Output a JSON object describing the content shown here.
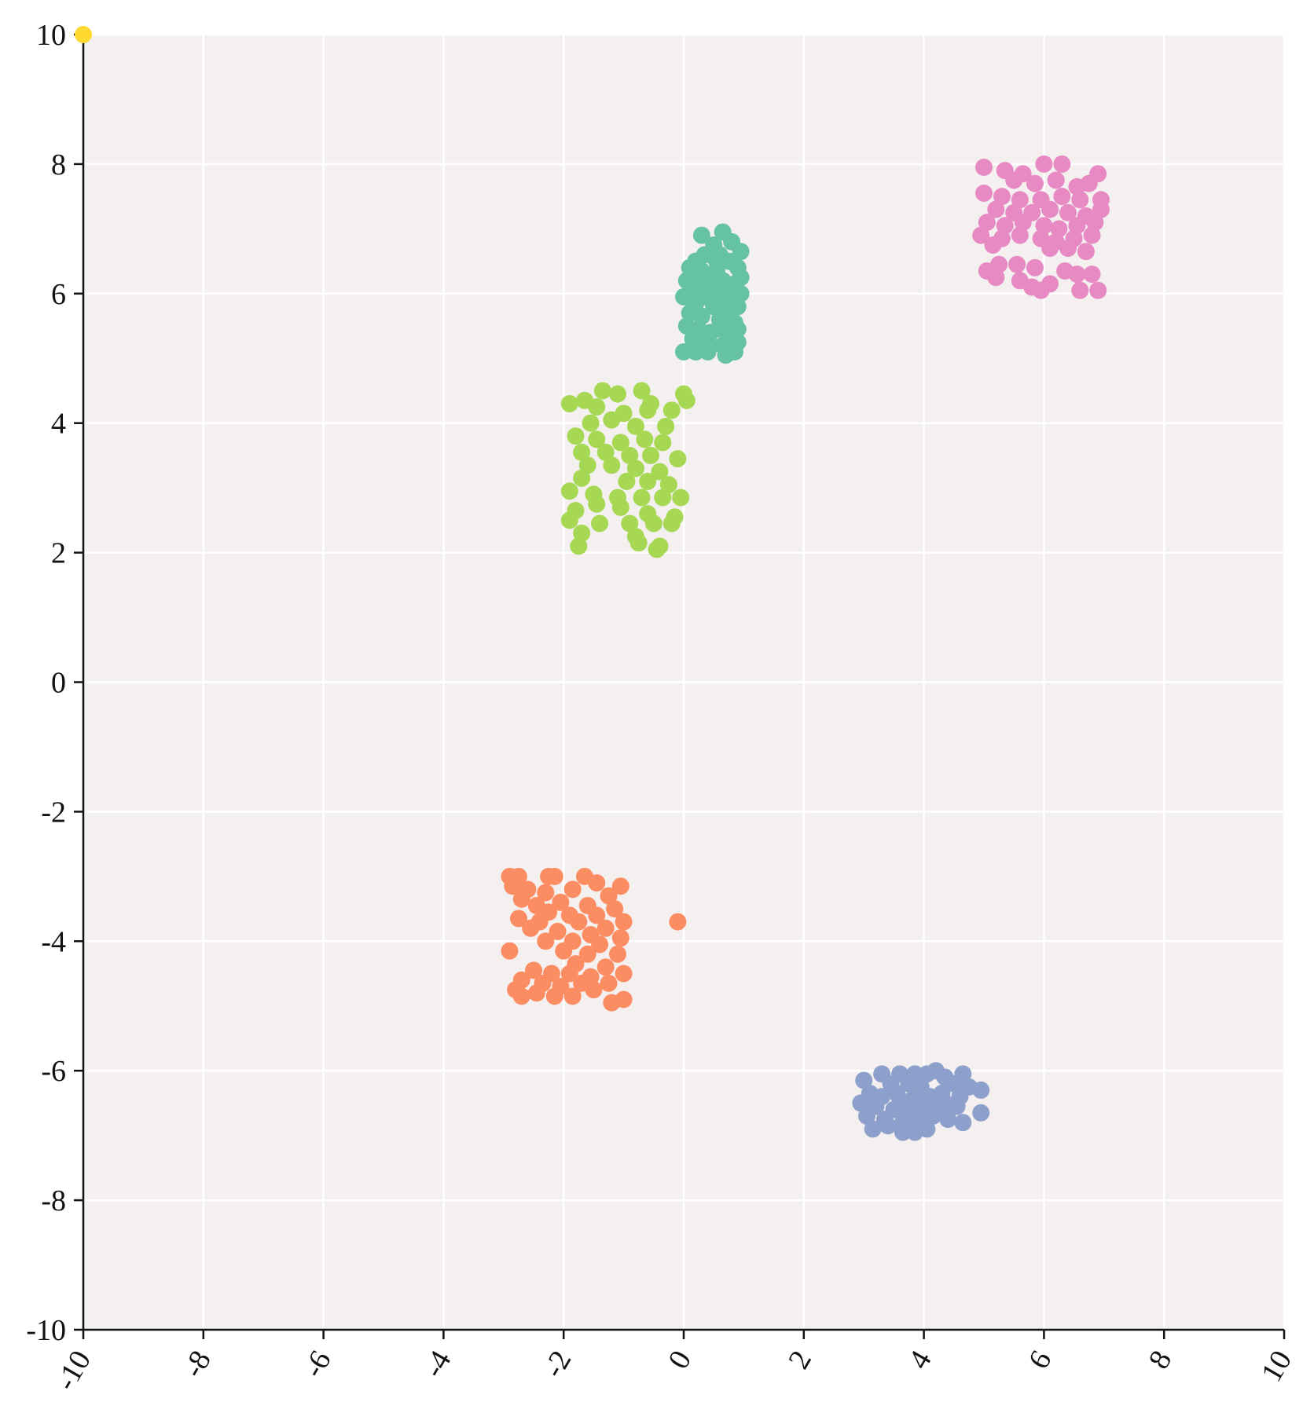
{
  "chart_data": {
    "type": "scatter",
    "title": "",
    "xlabel": "",
    "ylabel": "",
    "xlim": [
      -10,
      10
    ],
    "ylim": [
      -10,
      10
    ],
    "x_ticks": [
      -10,
      -8,
      -6,
      -4,
      -2,
      0,
      2,
      4,
      6,
      8,
      10
    ],
    "y_ticks": [
      -10,
      -8,
      -6,
      -4,
      -2,
      0,
      2,
      4,
      6,
      8,
      10
    ],
    "grid": true,
    "background": "#f5f0f0",
    "x_tick_rotation": "-60deg",
    "legend": "none",
    "series": [
      {
        "color": "#66c2a5",
        "points": [
          [
            0.3,
            6.9
          ],
          [
            0.5,
            6.75
          ],
          [
            0.65,
            6.95
          ],
          [
            0.8,
            6.8
          ],
          [
            0.95,
            6.65
          ],
          [
            0.35,
            6.6
          ],
          [
            0.55,
            6.5
          ],
          [
            0.75,
            6.5
          ],
          [
            0.1,
            6.4
          ],
          [
            0.3,
            6.35
          ],
          [
            0.9,
            6.4
          ],
          [
            0.05,
            6.2
          ],
          [
            0.25,
            6.2
          ],
          [
            0.45,
            6.25
          ],
          [
            0.65,
            6.2
          ],
          [
            0.85,
            6.15
          ],
          [
            0.95,
            6.25
          ],
          [
            0.15,
            6.05
          ],
          [
            0.4,
            6.0
          ],
          [
            0.6,
            6.05
          ],
          [
            0.8,
            6.0
          ],
          [
            0.95,
            6.0
          ],
          [
            0.0,
            5.95
          ],
          [
            0.2,
            5.85
          ],
          [
            0.5,
            5.8
          ],
          [
            0.7,
            5.85
          ],
          [
            0.9,
            5.8
          ],
          [
            0.1,
            5.7
          ],
          [
            0.3,
            5.65
          ],
          [
            0.6,
            5.6
          ],
          [
            0.85,
            5.55
          ],
          [
            0.05,
            5.5
          ],
          [
            0.25,
            5.45
          ],
          [
            0.45,
            5.4
          ],
          [
            0.7,
            5.4
          ],
          [
            0.9,
            5.45
          ],
          [
            0.15,
            5.3
          ],
          [
            0.4,
            5.25
          ],
          [
            0.65,
            5.2
          ],
          [
            0.9,
            5.25
          ],
          [
            0.0,
            5.1
          ],
          [
            0.2,
            5.1
          ],
          [
            0.4,
            5.1
          ],
          [
            0.7,
            5.05
          ],
          [
            0.85,
            5.1
          ],
          [
            0.55,
            6.35
          ],
          [
            0.35,
            5.95
          ],
          [
            0.75,
            5.7
          ],
          [
            0.2,
            6.5
          ],
          [
            0.6,
            6.6
          ]
        ]
      },
      {
        "color": "#fc8d62",
        "points": [
          [
            -2.9,
            -3.0
          ],
          [
            -2.75,
            -3.0
          ],
          [
            -2.25,
            -3.0
          ],
          [
            -2.15,
            -3.0
          ],
          [
            -1.65,
            -3.0
          ],
          [
            -1.45,
            -3.1
          ],
          [
            -1.05,
            -3.15
          ],
          [
            -2.85,
            -3.15
          ],
          [
            -2.6,
            -3.2
          ],
          [
            -2.3,
            -3.25
          ],
          [
            -1.85,
            -3.2
          ],
          [
            -1.25,
            -3.3
          ],
          [
            -2.7,
            -3.35
          ],
          [
            -2.45,
            -3.45
          ],
          [
            -2.05,
            -3.4
          ],
          [
            -1.6,
            -3.45
          ],
          [
            -1.15,
            -3.5
          ],
          [
            -2.25,
            -3.55
          ],
          [
            -1.9,
            -3.6
          ],
          [
            -1.45,
            -3.6
          ],
          [
            -1.0,
            -3.7
          ],
          [
            -2.75,
            -3.65
          ],
          [
            -2.4,
            -3.7
          ],
          [
            -1.75,
            -3.7
          ],
          [
            -1.3,
            -3.8
          ],
          [
            -2.55,
            -3.8
          ],
          [
            -2.1,
            -3.85
          ],
          [
            -1.55,
            -3.9
          ],
          [
            -1.05,
            -3.95
          ],
          [
            -2.3,
            -4.0
          ],
          [
            -1.85,
            -4.0
          ],
          [
            -1.4,
            -4.05
          ],
          [
            -2.0,
            -4.15
          ],
          [
            -1.6,
            -4.2
          ],
          [
            -1.1,
            -4.2
          ],
          [
            -2.9,
            -4.15
          ],
          [
            -1.8,
            -4.35
          ],
          [
            -1.3,
            -4.4
          ],
          [
            -2.5,
            -4.45
          ],
          [
            -2.2,
            -4.5
          ],
          [
            -1.9,
            -4.5
          ],
          [
            -1.55,
            -4.55
          ],
          [
            -1.0,
            -4.5
          ],
          [
            -2.7,
            -4.6
          ],
          [
            -2.35,
            -4.65
          ],
          [
            -2.05,
            -4.7
          ],
          [
            -1.7,
            -4.65
          ],
          [
            -1.25,
            -4.65
          ],
          [
            -2.8,
            -4.75
          ],
          [
            -2.45,
            -4.8
          ],
          [
            -2.15,
            -4.85
          ],
          [
            -1.85,
            -4.85
          ],
          [
            -1.5,
            -4.75
          ],
          [
            -1.2,
            -4.95
          ],
          [
            -2.7,
            -4.85
          ],
          [
            -1.0,
            -4.9
          ],
          [
            -0.1,
            -3.7
          ]
        ]
      },
      {
        "color": "#8da0cb",
        "points": [
          [
            3.3,
            -6.05
          ],
          [
            3.6,
            -6.05
          ],
          [
            3.85,
            -6.05
          ],
          [
            4.05,
            -6.05
          ],
          [
            4.2,
            -6.0
          ],
          [
            4.35,
            -6.1
          ],
          [
            4.65,
            -6.05
          ],
          [
            3.0,
            -6.15
          ],
          [
            3.45,
            -6.2
          ],
          [
            3.75,
            -6.2
          ],
          [
            3.95,
            -6.25
          ],
          [
            4.5,
            -6.2
          ],
          [
            4.75,
            -6.25
          ],
          [
            4.95,
            -6.3
          ],
          [
            3.1,
            -6.35
          ],
          [
            3.3,
            -6.4
          ],
          [
            3.55,
            -6.35
          ],
          [
            3.8,
            -6.45
          ],
          [
            4.1,
            -6.4
          ],
          [
            4.3,
            -6.35
          ],
          [
            4.6,
            -6.4
          ],
          [
            2.95,
            -6.5
          ],
          [
            3.2,
            -6.55
          ],
          [
            3.5,
            -6.6
          ],
          [
            3.75,
            -6.6
          ],
          [
            4.0,
            -6.55
          ],
          [
            4.25,
            -6.6
          ],
          [
            4.55,
            -6.55
          ],
          [
            4.95,
            -6.65
          ],
          [
            3.05,
            -6.7
          ],
          [
            3.35,
            -6.75
          ],
          [
            3.65,
            -6.8
          ],
          [
            3.9,
            -6.75
          ],
          [
            4.15,
            -6.7
          ],
          [
            4.4,
            -6.75
          ],
          [
            4.65,
            -6.8
          ],
          [
            3.15,
            -6.9
          ],
          [
            3.4,
            -6.85
          ],
          [
            3.65,
            -6.95
          ],
          [
            3.85,
            -6.95
          ],
          [
            4.05,
            -6.9
          ],
          [
            3.95,
            -6.4
          ],
          [
            3.6,
            -6.5
          ],
          [
            4.35,
            -6.5
          ]
        ]
      },
      {
        "color": "#e78ac3",
        "points": [
          [
            5.0,
            7.95
          ],
          [
            5.35,
            7.9
          ],
          [
            5.65,
            7.85
          ],
          [
            6.0,
            8.0
          ],
          [
            6.3,
            8.0
          ],
          [
            6.9,
            7.85
          ],
          [
            5.5,
            7.75
          ],
          [
            5.85,
            7.7
          ],
          [
            6.2,
            7.75
          ],
          [
            6.55,
            7.65
          ],
          [
            6.75,
            7.7
          ],
          [
            5.0,
            7.55
          ],
          [
            5.3,
            7.5
          ],
          [
            5.6,
            7.45
          ],
          [
            5.95,
            7.45
          ],
          [
            6.3,
            7.5
          ],
          [
            6.6,
            7.45
          ],
          [
            6.95,
            7.45
          ],
          [
            5.2,
            7.3
          ],
          [
            5.5,
            7.25
          ],
          [
            5.8,
            7.25
          ],
          [
            6.1,
            7.3
          ],
          [
            6.4,
            7.25
          ],
          [
            6.7,
            7.2
          ],
          [
            6.95,
            7.3
          ],
          [
            5.05,
            7.1
          ],
          [
            5.35,
            7.05
          ],
          [
            5.65,
            7.1
          ],
          [
            6.0,
            7.05
          ],
          [
            6.25,
            7.0
          ],
          [
            6.55,
            7.05
          ],
          [
            6.85,
            7.1
          ],
          [
            4.95,
            6.9
          ],
          [
            5.3,
            6.85
          ],
          [
            5.6,
            6.9
          ],
          [
            5.95,
            6.85
          ],
          [
            6.2,
            6.8
          ],
          [
            6.5,
            6.85
          ],
          [
            6.8,
            6.9
          ],
          [
            5.15,
            6.75
          ],
          [
            6.1,
            6.7
          ],
          [
            6.4,
            6.7
          ],
          [
            6.7,
            6.65
          ],
          [
            5.05,
            6.35
          ],
          [
            5.25,
            6.45
          ],
          [
            5.55,
            6.45
          ],
          [
            5.85,
            6.4
          ],
          [
            6.35,
            6.35
          ],
          [
            6.55,
            6.3
          ],
          [
            6.8,
            6.3
          ],
          [
            5.2,
            6.25
          ],
          [
            5.6,
            6.2
          ],
          [
            5.8,
            6.1
          ],
          [
            5.95,
            6.05
          ],
          [
            6.1,
            6.15
          ],
          [
            6.6,
            6.05
          ],
          [
            6.9,
            6.05
          ]
        ]
      },
      {
        "color": "#a6d854",
        "points": [
          [
            -1.9,
            4.3
          ],
          [
            -1.65,
            4.35
          ],
          [
            -1.35,
            4.5
          ],
          [
            -1.1,
            4.45
          ],
          [
            -0.7,
            4.5
          ],
          [
            -0.55,
            4.3
          ],
          [
            0.0,
            4.45
          ],
          [
            0.05,
            4.35
          ],
          [
            -1.45,
            4.25
          ],
          [
            -1.0,
            4.15
          ],
          [
            -0.6,
            4.2
          ],
          [
            -0.2,
            4.2
          ],
          [
            -1.55,
            4.0
          ],
          [
            -1.2,
            4.05
          ],
          [
            -0.8,
            3.95
          ],
          [
            -0.3,
            3.95
          ],
          [
            -1.8,
            3.8
          ],
          [
            -1.45,
            3.75
          ],
          [
            -1.05,
            3.7
          ],
          [
            -0.65,
            3.75
          ],
          [
            -0.35,
            3.7
          ],
          [
            -1.7,
            3.55
          ],
          [
            -1.3,
            3.55
          ],
          [
            -0.9,
            3.5
          ],
          [
            -0.55,
            3.5
          ],
          [
            -0.1,
            3.45
          ],
          [
            -1.6,
            3.35
          ],
          [
            -1.2,
            3.35
          ],
          [
            -0.8,
            3.3
          ],
          [
            -0.4,
            3.25
          ],
          [
            -1.7,
            3.15
          ],
          [
            -0.95,
            3.1
          ],
          [
            -0.6,
            3.1
          ],
          [
            -0.25,
            3.05
          ],
          [
            -1.9,
            2.95
          ],
          [
            -1.5,
            2.9
          ],
          [
            -1.1,
            2.85
          ],
          [
            -0.7,
            2.85
          ],
          [
            -0.35,
            2.85
          ],
          [
            -0.05,
            2.85
          ],
          [
            -1.8,
            2.65
          ],
          [
            -1.45,
            2.75
          ],
          [
            -1.05,
            2.7
          ],
          [
            -0.6,
            2.6
          ],
          [
            -0.15,
            2.55
          ],
          [
            -1.9,
            2.5
          ],
          [
            -1.4,
            2.45
          ],
          [
            -0.9,
            2.45
          ],
          [
            -0.5,
            2.45
          ],
          [
            -0.2,
            2.45
          ],
          [
            -1.7,
            2.3
          ],
          [
            -0.8,
            2.25
          ],
          [
            -1.75,
            2.1
          ],
          [
            -0.75,
            2.15
          ],
          [
            -0.45,
            2.05
          ],
          [
            -0.4,
            2.1
          ]
        ]
      },
      {
        "color": "#ffd92f",
        "points": [
          [
            -10.0,
            10.0
          ]
        ]
      }
    ]
  }
}
